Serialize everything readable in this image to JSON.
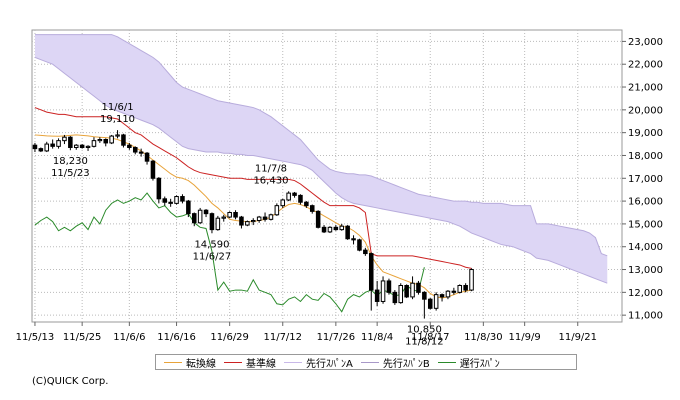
{
  "chart_data": {
    "type": "candlestick",
    "y_axis": {
      "position": "right",
      "ticks": [
        "23,000",
        "22,000",
        "21,000",
        "20,000",
        "19,000",
        "18,000",
        "17,000",
        "16,000",
        "15,000",
        "14,000",
        "13,000",
        "12,000",
        "11,000"
      ],
      "tick_values": [
        23000,
        22000,
        21000,
        20000,
        19000,
        18000,
        17000,
        16000,
        15000,
        14000,
        13000,
        12000,
        11000
      ],
      "ylim": [
        10700,
        23500
      ]
    },
    "x_axis": {
      "ticks": [
        "11/5/13",
        "11/5/25",
        "11/6/6",
        "11/6/16",
        "11/6/29",
        "11/7/12",
        "11/7/26",
        "11/8/4",
        "11/8/17",
        "11/8/30",
        "11/9/9",
        "11/9/21"
      ],
      "tick_index": [
        0,
        8,
        16,
        24,
        33,
        42,
        51,
        58,
        67,
        76,
        83,
        92
      ],
      "n_slots": 100
    },
    "annotations": [
      {
        "lines": [
          "11/6/1",
          "19,110"
        ],
        "at_index": 14,
        "value": 19110
      },
      {
        "lines": [
          "18,230",
          "11/5/23"
        ],
        "at_index": 6,
        "value": 18230
      },
      {
        "lines": [
          "11/7/8",
          "16,430"
        ],
        "at_index": 40,
        "value": 16430
      },
      {
        "lines": [
          "14,590",
          "11/6/27"
        ],
        "at_index": 30,
        "value": 14590
      },
      {
        "lines": [
          "10,850",
          "11/8/12"
        ],
        "at_index": 66,
        "value": 10850
      }
    ],
    "candles": [
      [
        18450,
        18550,
        18150,
        18300
      ],
      [
        18300,
        18350,
        18150,
        18200
      ],
      [
        18200,
        18600,
        18150,
        18500
      ],
      [
        18500,
        18700,
        18300,
        18400
      ],
      [
        18400,
        18750,
        18300,
        18650
      ],
      [
        18650,
        18900,
        18500,
        18800
      ],
      [
        18800,
        18850,
        18230,
        18350
      ],
      [
        18350,
        18500,
        18250,
        18450
      ],
      [
        18450,
        18500,
        18300,
        18350
      ],
      [
        18350,
        18450,
        18200,
        18400
      ],
      [
        18400,
        18800,
        18350,
        18650
      ],
      [
        18650,
        18800,
        18550,
        18700
      ],
      [
        18700,
        18750,
        18400,
        18550
      ],
      [
        18550,
        18900,
        18500,
        18850
      ],
      [
        18850,
        19110,
        18750,
        18900
      ],
      [
        18900,
        18950,
        18350,
        18450
      ],
      [
        18450,
        18550,
        18250,
        18350
      ],
      [
        18350,
        18400,
        18050,
        18150
      ],
      [
        18150,
        18300,
        17950,
        18100
      ],
      [
        18100,
        18150,
        17600,
        17750
      ],
      [
        17750,
        17800,
        16900,
        17000
      ],
      [
        17000,
        17050,
        15900,
        16100
      ],
      [
        16100,
        16200,
        15800,
        15950
      ],
      [
        15950,
        16100,
        15750,
        15900
      ],
      [
        15900,
        16250,
        15850,
        16200
      ],
      [
        16200,
        16300,
        15900,
        16000
      ],
      [
        16000,
        16050,
        15300,
        15450
      ],
      [
        15450,
        15500,
        14900,
        15050
      ],
      [
        15050,
        15700,
        15000,
        15600
      ],
      [
        15600,
        15650,
        15300,
        15450
      ],
      [
        15450,
        15500,
        14590,
        14750
      ],
      [
        14750,
        15350,
        14700,
        15250
      ],
      [
        15250,
        15400,
        15100,
        15300
      ],
      [
        15300,
        15550,
        15250,
        15500
      ],
      [
        15500,
        15600,
        15200,
        15300
      ],
      [
        15300,
        15350,
        14800,
        14950
      ],
      [
        14950,
        15150,
        14900,
        15100
      ],
      [
        15100,
        15250,
        14950,
        15150
      ],
      [
        15150,
        15350,
        15050,
        15300
      ],
      [
        15300,
        15500,
        15100,
        15200
      ],
      [
        15200,
        15450,
        15150,
        15400
      ],
      [
        15400,
        15900,
        15350,
        15800
      ],
      [
        15800,
        16100,
        15700,
        16050
      ],
      [
        16050,
        16430,
        16000,
        16350
      ],
      [
        16350,
        16400,
        16150,
        16250
      ],
      [
        16250,
        16300,
        15850,
        15950
      ],
      [
        15950,
        16000,
        15700,
        15800
      ],
      [
        15800,
        15850,
        15450,
        15550
      ],
      [
        15550,
        15600,
        14800,
        14850
      ],
      [
        14850,
        14950,
        14600,
        14650
      ],
      [
        14650,
        14900,
        14600,
        14850
      ],
      [
        14850,
        14950,
        14700,
        14750
      ],
      [
        14750,
        15000,
        14700,
        14900
      ],
      [
        14900,
        14950,
        14300,
        14350
      ],
      [
        14350,
        14500,
        14100,
        14300
      ],
      [
        14300,
        14350,
        13800,
        13850
      ],
      [
        13850,
        13950,
        13600,
        13700
      ],
      [
        13700,
        13750,
        11200,
        12100
      ],
      [
        12100,
        12500,
        11400,
        11600
      ],
      [
        11600,
        12700,
        11500,
        12500
      ],
      [
        12500,
        12600,
        11900,
        12000
      ],
      [
        12000,
        12100,
        11450,
        11550
      ],
      [
        11550,
        12400,
        11500,
        12300
      ],
      [
        12300,
        12350,
        11750,
        11800
      ],
      [
        11800,
        12700,
        11700,
        12400
      ],
      [
        12400,
        12500,
        11900,
        12000
      ],
      [
        12000,
        12050,
        10850,
        11700
      ],
      [
        11700,
        11750,
        11250,
        11300
      ],
      [
        11300,
        12000,
        11200,
        11900
      ],
      [
        11900,
        11950,
        11600,
        11800
      ],
      [
        11800,
        12100,
        11700,
        12050
      ],
      [
        12050,
        12200,
        11900,
        12000
      ],
      [
        12000,
        12350,
        11950,
        12300
      ],
      [
        12300,
        12400,
        12000,
        12100
      ],
      [
        12100,
        13050,
        12050,
        13000
      ]
    ],
    "tenkan_sen": [
      18900,
      18880,
      18860,
      18850,
      18840,
      18860,
      18880,
      18900,
      18880,
      18860,
      18820,
      18800,
      18780,
      18760,
      18700,
      18600,
      18500,
      18350,
      18200,
      18000,
      17800,
      17600,
      17400,
      17200,
      17050,
      17000,
      16900,
      16700,
      16450,
      16200,
      15900,
      15700,
      15450,
      15200,
      15150,
      15120,
      15100,
      15100,
      15150,
      15200,
      15300,
      15500,
      15700,
      15850,
      15900,
      15850,
      15750,
      15600,
      15500,
      15350,
      15200,
      15050,
      14900,
      14850,
      14700,
      14500,
      14200,
      13600,
      13200,
      12900,
      12800,
      12700,
      12600,
      12500,
      12400,
      12350,
      12200,
      11950,
      11800,
      11750,
      11800,
      11900,
      12000,
      12050,
      12100
    ],
    "kijun_sen": [
      20100,
      20000,
      19900,
      19850,
      19800,
      19800,
      19750,
      19700,
      19700,
      19700,
      19700,
      19700,
      19700,
      19650,
      19600,
      19400,
      19200,
      19000,
      18900,
      18700,
      18500,
      18350,
      18200,
      18050,
      17900,
      17700,
      17500,
      17350,
      17250,
      17200,
      17150,
      17100,
      17050,
      17000,
      17000,
      17000,
      16950,
      16950,
      16950,
      16950,
      16950,
      16950,
      16950,
      16950,
      16900,
      16750,
      16550,
      16350,
      16150,
      15950,
      15800,
      15800,
      15800,
      15800,
      15800,
      15700,
      15500,
      13700,
      13600,
      13600,
      13600,
      13600,
      13600,
      13600,
      13600,
      13550,
      13500,
      13450,
      13400,
      13350,
      13300,
      13250,
      13200,
      13100,
      13050
    ],
    "senkou_a": [
      23300,
      23300,
      23300,
      23300,
      23300,
      23300,
      23300,
      23300,
      23300,
      23300,
      23300,
      23300,
      23300,
      23300,
      23200,
      23050,
      22900,
      22750,
      22600,
      22450,
      22300,
      22100,
      21800,
      21500,
      21200,
      21000,
      20900,
      20800,
      20700,
      20600,
      20500,
      20400,
      20350,
      20300,
      20250,
      20200,
      20150,
      20100,
      20000,
      19850,
      19700,
      19500,
      19300,
      19100,
      18900,
      18700,
      18400,
      18100,
      17800,
      17600,
      17400,
      17300,
      17250,
      17200,
      17200,
      17150,
      17150,
      17100,
      17000,
      16900,
      16800,
      16700,
      16600,
      16500,
      16400,
      16300,
      16250,
      16200,
      16150,
      16100,
      16050,
      16000,
      16000,
      16000,
      15950,
      15950,
      15900,
      15900,
      15900,
      15900,
      15850,
      15800,
      15800,
      15800,
      15800,
      15000,
      15000,
      15000,
      14950,
      14900,
      14850,
      14800,
      14750,
      14700,
      14600,
      14400,
      13700,
      13600
    ],
    "senkou_b": [
      22300,
      22200,
      22100,
      22000,
      21800,
      21600,
      21400,
      21200,
      21000,
      20800,
      20600,
      20400,
      20200,
      20050,
      19950,
      19850,
      19750,
      19650,
      19550,
      19450,
      19350,
      19200,
      19000,
      18800,
      18600,
      18400,
      18300,
      18250,
      18200,
      18150,
      18150,
      18150,
      18100,
      18100,
      18050,
      18050,
      18000,
      18000,
      17950,
      17900,
      17850,
      17800,
      17750,
      17700,
      17650,
      17600,
      17500,
      17350,
      17100,
      16850,
      16600,
      16350,
      16150,
      16000,
      15900,
      15850,
      15800,
      15750,
      15700,
      15650,
      15600,
      15550,
      15500,
      15450,
      15400,
      15350,
      15300,
      15250,
      15200,
      15150,
      15100,
      15000,
      14900,
      14750,
      14600,
      14500,
      14400,
      14300,
      14200,
      14100,
      14050,
      14000,
      13900,
      13800,
      13700,
      13500,
      13450,
      13400,
      13300,
      13200,
      13100,
      13000,
      12900,
      12800,
      12700,
      12600,
      12500,
      12400
    ],
    "chikou_span": [
      14950,
      15150,
      15300,
      15100,
      14700,
      14850,
      14700,
      14900,
      15050,
      14750,
      15300,
      15000,
      15600,
      15900,
      16050,
      15900,
      16000,
      16150,
      16050,
      16350,
      16000,
      15700,
      15800,
      15500,
      15300,
      15350,
      15450,
      15050,
      14850,
      14800,
      13800,
      12100,
      12450,
      12050,
      12100,
      12100,
      12050,
      12550,
      12100,
      12000,
      11900,
      11500,
      11450,
      11700,
      11800,
      11600,
      11900,
      11700,
      11650,
      11950,
      11800,
      11500,
      11150,
      11700,
      11900,
      11800,
      12000,
      12100,
      11850,
      12100,
      12000,
      11850,
      11900,
      12300,
      12100,
      12050,
      13100
    ]
  },
  "legend": [
    {
      "label": "転換線",
      "color": "#e8a33a"
    },
    {
      "label": "基準線",
      "color": "#cc2222"
    },
    {
      "label": "先行ｽﾊﾟﾝA",
      "color": "#c8b8e8"
    },
    {
      "label": "先行ｽﾊﾟﾝB",
      "color": "#a898c8"
    },
    {
      "label": "遅行ｽﾊﾟﾝ",
      "color": "#2a8a2a"
    }
  ],
  "colors": {
    "cloud": "#ddd6f5",
    "cloud_edge": "#b8acdc",
    "grid": "#bbbbbb",
    "candle_line": "#000000"
  },
  "copyright": "(C)QUICK Corp."
}
